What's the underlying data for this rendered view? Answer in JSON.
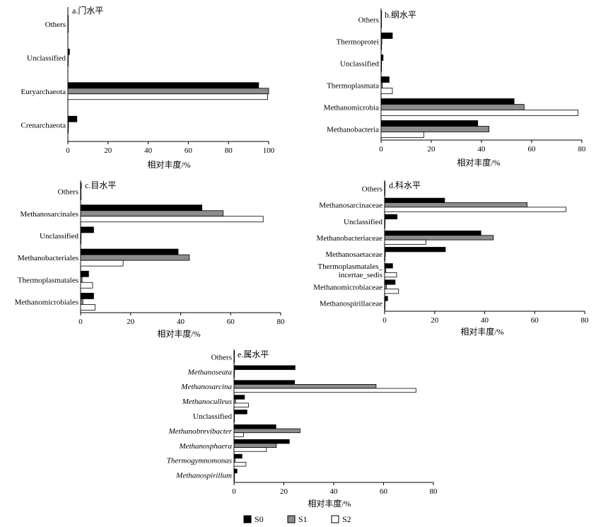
{
  "figure": {
    "panels": [
      {
        "id": "a",
        "title": "a.门水平",
        "xlabel": "相对丰度/%"
      },
      {
        "id": "b",
        "title": "b.纲水平",
        "xlabel": "相对丰度/%"
      },
      {
        "id": "c",
        "title": "c.目水平",
        "xlabel": "相对丰度/%"
      },
      {
        "id": "d",
        "title": "d.科水平",
        "xlabel": "相对丰度/%"
      },
      {
        "id": "e",
        "title": "e.属水平",
        "xlabel": "相对丰度/%"
      }
    ],
    "legend": {
      "series": [
        {
          "name": "S0",
          "color": "#000000"
        },
        {
          "name": "S1",
          "color": "#8c8c8c"
        },
        {
          "name": "S2",
          "color": "#ffffff"
        }
      ]
    }
  },
  "chart_data": [
    {
      "type": "bar",
      "orientation": "horizontal",
      "title": "a.门水平",
      "xlabel": "相对丰度/%",
      "xlim": [
        0,
        100
      ],
      "xticks": [
        0,
        20,
        40,
        60,
        80,
        100
      ],
      "categories": [
        "Others",
        "Unclassified",
        "Euryarchaeota",
        "Crenarchaeota"
      ],
      "series": [
        {
          "name": "S0",
          "values": [
            0.2,
            0.8,
            95,
            4.5
          ]
        },
        {
          "name": "S1",
          "values": [
            0.1,
            0.2,
            100,
            0.3
          ]
        },
        {
          "name": "S2",
          "values": [
            0.1,
            0.1,
            99.5,
            0.2
          ]
        }
      ]
    },
    {
      "type": "bar",
      "orientation": "horizontal",
      "title": "b.纲水平",
      "xlabel": "相对丰度/%",
      "xlim": [
        0,
        80
      ],
      "xticks": [
        0,
        20,
        40,
        60,
        80
      ],
      "categories": [
        "Others",
        "Thermoprotei",
        "Unclassified",
        "Thermoplasmata",
        "Methanomicrobia",
        "Methanobacteria"
      ],
      "series": [
        {
          "name": "S0",
          "values": [
            0.2,
            4.5,
            0.8,
            3.2,
            53,
            38.5
          ]
        },
        {
          "name": "S1",
          "values": [
            0.1,
            0.3,
            0.2,
            0.5,
            57,
            43
          ]
        },
        {
          "name": "S2",
          "values": [
            0.1,
            0.2,
            0.1,
            4.5,
            78.5,
            17
          ]
        }
      ]
    },
    {
      "type": "bar",
      "orientation": "horizontal",
      "title": "c.目水平",
      "xlabel": "相对丰度/%",
      "xlim": [
        0,
        80
      ],
      "xticks": [
        0,
        20,
        40,
        60,
        80
      ],
      "categories": [
        "Others",
        "Methanosarcinales",
        "Unclassified",
        "Methanobacteriales",
        "Thermoplasmatales",
        "Methanomicrobiales"
      ],
      "series": [
        {
          "name": "S0",
          "values": [
            0.3,
            48.5,
            5.2,
            39,
            3.2,
            5.2
          ]
        },
        {
          "name": "S1",
          "values": [
            0.1,
            57,
            0.2,
            43.5,
            0.6,
            0.9
          ]
        },
        {
          "name": "S2",
          "values": [
            0.2,
            73,
            0.1,
            17,
            4.8,
            5.8
          ]
        }
      ]
    },
    {
      "type": "bar",
      "orientation": "horizontal",
      "title": "d.科水平",
      "xlabel": "相对丰度/%",
      "xlim": [
        0,
        80
      ],
      "xticks": [
        0,
        20,
        40,
        60,
        80
      ],
      "categories": [
        "Others",
        "Methanosarcinaceae",
        "Unclassified",
        "Methanobacteriaceae",
        "Methanosaetaceae",
        "Thermoplasmatales_incertae_sedis",
        "Methanomicrobiaceae",
        "Methanospirillaceae"
      ],
      "series": [
        {
          "name": "S0",
          "values": [
            0.2,
            24,
            5,
            38.5,
            24.3,
            3.2,
            4.2,
            1.2
          ]
        },
        {
          "name": "S1",
          "values": [
            0.1,
            57,
            0.2,
            43.5,
            0.3,
            0.5,
            0.7,
            0.2
          ]
        },
        {
          "name": "S2",
          "values": [
            0.1,
            72.5,
            0.1,
            16.5,
            0.1,
            4.8,
            5.6,
            0.1
          ]
        }
      ]
    },
    {
      "type": "bar",
      "orientation": "horizontal",
      "title": "e.属水平",
      "xlabel": "相对丰度/%",
      "xlim": [
        0,
        80
      ],
      "xticks": [
        0,
        20,
        40,
        60,
        80
      ],
      "categories": [
        "Others",
        "Methanoseata",
        "Methanosarcina",
        "Methanoculleus",
        "Unclassified",
        "Methanobrevibacter",
        "Methanosphaera",
        "Thermogymnomonas",
        "Methanospirillum"
      ],
      "italic": [
        false,
        true,
        true,
        true,
        false,
        true,
        true,
        true,
        true
      ],
      "series": [
        {
          "name": "S0",
          "values": [
            0.2,
            24.5,
            24.3,
            4.2,
            5.2,
            16.8,
            22.2,
            3.2,
            1.2
          ]
        },
        {
          "name": "S1",
          "values": [
            0.1,
            0.2,
            57,
            0.6,
            0.2,
            26.5,
            17,
            0.4,
            0.2
          ]
        },
        {
          "name": "S2",
          "values": [
            0.1,
            0.1,
            73,
            5.8,
            0.1,
            3.8,
            13,
            4.8,
            0.1
          ]
        }
      ]
    }
  ]
}
